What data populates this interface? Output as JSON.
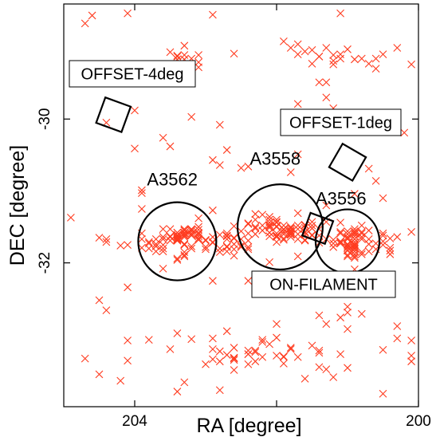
{
  "chart_data": {
    "type": "scatter",
    "title": "",
    "xlabel": "RA [degree]",
    "ylabel": "DEC [degree]",
    "xlim": [
      205.0,
      200.0
    ],
    "ylim": [
      -34.0,
      -28.4
    ],
    "x_reversed": true,
    "xticks": [
      204,
      202,
      200
    ],
    "xtick_labels": [
      "204",
      "",
      "200"
    ],
    "yticks": [
      -30,
      -32
    ],
    "ytick_labels": [
      "-30",
      "-32"
    ],
    "grid": false,
    "legend": "none",
    "marker": "x",
    "marker_color": "#ff3b1f",
    "frame_color": "#000000",
    "clusters": [
      {
        "name": "A3562",
        "ra": 203.4,
        "dec": -31.7,
        "radius": 0.55
      },
      {
        "name": "A3558",
        "ra": 201.95,
        "dec": -31.5,
        "radius": 0.6
      },
      {
        "name": "A3556",
        "ra": 201.0,
        "dec": -31.7,
        "radius": 0.45
      }
    ],
    "fields": [
      {
        "name": "OFFSET-4deg",
        "ra": 204.3,
        "dec": -29.94,
        "size": 0.38,
        "angle": 20
      },
      {
        "name": "OFFSET-1deg",
        "ra": 201.0,
        "dec": -30.6,
        "size": 0.38,
        "angle": 30
      },
      {
        "name": "ON-FILAMENT",
        "ra": 201.42,
        "dec": -31.52,
        "size": 0.34,
        "angle": 20
      }
    ],
    "points_x": [
      201.8,
      204.2,
      201.8,
      204.4,
      204.4,
      201.9,
      200.9,
      203.4,
      202.6,
      201.1,
      200.8,
      203.6,
      201.4,
      203.7,
      202.7,
      203.9,
      200.3,
      203.2,
      204.5,
      203.2,
      201.6,
      200.1,
      200.7,
      202.1,
      201.9,
      201.8,
      201.6,
      202.1,
      202.0,
      201.6,
      201.6,
      202.1,
      202.4,
      201.1,
      201.9,
      202.3,
      202.2,
      201.8,
      202.0,
      202.0,
      202.1,
      201.5,
      201.8,
      201.7,
      201.8,
      201.5,
      202.3,
      202.5,
      202.4,
      201.8,
      201.7,
      201.9,
      201.8,
      202.0,
      201.9,
      202.0,
      201.6,
      201.8,
      202.0,
      202.2,
      201.5,
      202.1,
      201.9,
      202.0,
      201.6,
      202.1,
      202.1,
      202.1,
      201.8,
      201.7,
      202.0,
      201.8,
      201.7,
      202.1,
      202.2,
      202.0,
      201.6,
      201.7,
      202.0,
      202.1,
      203.6,
      203.4,
      203.3,
      203.2,
      203.3,
      203.3,
      203.5,
      203.7,
      203.3,
      203.4,
      203.3,
      203.4,
      203.4,
      203.4,
      203.0,
      203.4,
      203.1,
      203.3,
      203.6,
      203.3,
      203.4,
      203.4,
      203.3,
      203.7,
      203.2,
      203.5,
      203.4,
      203.3,
      203.4,
      203.1,
      203.4,
      203.2,
      203.3,
      203.7,
      203.5,
      203.8,
      200.9,
      201.0,
      200.8,
      200.9,
      200.8,
      200.8,
      201.0,
      201.0,
      201.0,
      200.9,
      201.0,
      201.0,
      200.9,
      200.9,
      201.0,
      200.9,
      200.9,
      201.1,
      200.9,
      201.0,
      201.0,
      200.9,
      201.2,
      200.9,
      201.4,
      201.3,
      201.0,
      201.1,
      200.9,
      201.2,
      201.5,
      200.9,
      201.1,
      201.0,
      200.7,
      200.9,
      200.9,
      200.9,
      201.1,
      201.0,
      202.6,
      202.7,
      202.9,
      202.7,
      203.0,
      202.4,
      201.9,
      202.3,
      202.2,
      202.6,
      203.5,
      202.4,
      203.8,
      202.3,
      202.2,
      202.4,
      202.9,
      202.4,
      202.6,
      202.8,
      202.9,
      202.6,
      202.6,
      202.8,
      201.3,
      201.2,
      201.5,
      201.1,
      200.8,
      201.6,
      200.6,
      201.4,
      201.1,
      201.2,
      201.5,
      201.7,
      201.2,
      201.4,
      203.1,
      203.3,
      203.3,
      203.2,
      203.4,
      203.3,
      203.1,
      203.3,
      203.1,
      203.4,
      203.3,
      202.9,
      203.1,
      203.4,
      203.1,
      203.1,
      203.2,
      203.3,
      203.3,
      203.0,
      203.1,
      203.1,
      203.3,
      203.4,
      203.4,
      203.2,
      203.2,
      203.1,
      203.5,
      203.1,
      202.7,
      202.3,
      202.7,
      202.4,
      202.9,
      202.3,
      202.6,
      202.7,
      202.6,
      202.9,
      202.7,
      202.7,
      202.5,
      202.4,
      202.6,
      202.6,
      202.5,
      202.4,
      202.6,
      202.8,
      202.8,
      202.5,
      203.0,
      203.0,
      202.8,
      202.7,
      202.7,
      202.4,
      200.4,
      200.6,
      200.7,
      200.4,
      201.0,
      200.7,
      200.5,
      200.9,
      200.4,
      200.6,
      201.0,
      200.5,
      200.8,
      200.5,
      200.5,
      200.4,
      203.8,
      203.9,
      204.1,
      203.6,
      203.7,
      203.9,
      203.8,
      203.6,
      203.6,
      203.3,
      201.7,
      201.0,
      201.6,
      201.4,
      201.2,
      200.9,
      200.8,
      201.5,
      201.1,
      200.8,
      201.1,
      200.9,
      201.3,
      201.0,
      201.8,
      201.1,
      201.4,
      201.0,
      201.1,
      200.5,
      201.0,
      201.8,
      202.0,
      202.1,
      201.5,
      201.4,
      201.7,
      202.0,
      200.1,
      200.8,
      202.2,
      204.1,
      202.0,
      204.1,
      203.4,
      201.4,
      201.4,
      203.2,
      201.2,
      200.1,
      204.7,
      200.9,
      204.4,
      203.9,
      200.9,
      204.4,
      201.3,
      201.3,
      203.4,
      202.9,
      201.2,
      203.9,
      201.7,
      202.4,
      202.3,
      201.3,
      200.6,
      202.3,
      201.3,
      204.0,
      203.6,
      200.3,
      200.5,
      201.6,
      200.3,
      201.1,
      202.9,
      204.0,
      203.3,
      200.7,
      201.1,
      201.9,
      202.7,
      201.3,
      202.1,
      203.3,
      201.9,
      200.2,
      201.1,
      200.1,
      202.8,
      200.6,
      203.6,
      201.0,
      201.0,
      201.5,
      202.4,
      202.8,
      204.5,
      201.7,
      200.9,
      203.5,
      204.6,
      202.3,
      202.8,
      203.4,
      204.1,
      203.1,
      204.9,
      201.3,
      200.1,
      204.7,
      204.1,
      201.9,
      201.9,
      202.9,
      203.9,
      201.1,
      201.9,
      202.6,
      201.4,
      200.5,
      204.2,
      203.5,
      204.4,
      200.7,
      200.3,
      203.2,
      201.1,
      202.5,
      202.9,
      200.5,
      201.4,
      201.7,
      204.5,
      201.8,
      204.0,
      201.8
    ],
    "points_y": [
      -31.61,
      -31.76,
      -31.6,
      -31.71,
      -31.67,
      -31.68,
      -31.53,
      -31.58,
      -31.65,
      -31.57,
      -31.48,
      -31.53,
      -31.62,
      -31.67,
      -31.63,
      -31.59,
      -31.64,
      -31.53,
      -31.65,
      -31.59,
      -31.69,
      -31.57,
      -31.55,
      -31.63,
      -31.53,
      -31.57,
      -31.47,
      -31.49,
      -31.49,
      -31.68,
      -31.57,
      -31.47,
      -31.45,
      -31.71,
      -31.66,
      -31.4,
      -31.33,
      -31.55,
      -31.71,
      -31.5,
      -31.51,
      -31.43,
      -31.52,
      -31.31,
      -31.6,
      -31.52,
      -31.32,
      -31.56,
      -31.46,
      -31.52,
      -31.6,
      -31.54,
      -31.58,
      -31.59,
      -31.48,
      -31.63,
      -31.58,
      -31.5,
      -31.43,
      -31.48,
      -31.48,
      -31.58,
      -31.6,
      -31.4,
      -31.48,
      -31.4,
      -31.49,
      -31.36,
      -31.64,
      -31.67,
      -31.64,
      -31.55,
      -31.53,
      -31.58,
      -31.55,
      -31.62,
      -31.51,
      -31.48,
      -31.44,
      -31.44,
      -31.67,
      -31.94,
      -31.91,
      -31.61,
      -31.74,
      -31.64,
      -31.64,
      -31.74,
      -31.55,
      -31.66,
      -31.75,
      -31.69,
      -31.62,
      -31.69,
      -31.81,
      -31.58,
      -31.58,
      -31.74,
      -31.84,
      -31.62,
      -31.68,
      -31.69,
      -31.61,
      -31.77,
      -31.77,
      -31.69,
      -31.66,
      -31.89,
      -31.96,
      -31.6,
      -31.61,
      -31.8,
      -31.74,
      -31.84,
      -31.53,
      -31.73,
      -31.78,
      -31.66,
      -31.57,
      -31.76,
      -31.67,
      -31.88,
      -31.82,
      -31.79,
      -31.89,
      -31.74,
      -31.91,
      -31.74,
      -31.71,
      -31.74,
      -31.79,
      -31.67,
      -31.63,
      -31.73,
      -31.91,
      -31.6,
      -31.74,
      -31.6,
      -31.78,
      -31.76,
      -31.72,
      -31.67,
      -31.56,
      -31.73,
      -31.81,
      -31.73,
      -31.61,
      -31.8,
      -31.7,
      -31.67,
      -31.67,
      -31.88,
      -31.93,
      -31.84,
      -31.71,
      -31.77,
      -33.33,
      -33.28,
      -33.05,
      -32.95,
      -33.41,
      -33.27,
      -33.31,
      -33.24,
      -33.31,
      -33.32,
      -33.2,
      -33.22,
      -33.07,
      -33.37,
      -33.1,
      -33.27,
      -33.2,
      -33.41,
      -33.18,
      -33.37,
      -33.34,
      -33.49,
      -33.35,
      -33.23,
      -29.01,
      -29.19,
      -29.23,
      -29.16,
      -29.16,
      -29.06,
      -29.16,
      -29.13,
      -29.1,
      -29.24,
      -29.04,
      -29.1,
      -29.11,
      -29.13,
      -29.28,
      -29.26,
      -29.35,
      -29.16,
      -29.12,
      -29.17,
      -29.21,
      -29.11,
      -29.11,
      -29.13,
      -31.53,
      -31.64,
      -31.66,
      -31.67,
      -31.54,
      -31.68,
      -31.54,
      -31.55,
      -31.58,
      -31.68,
      -31.63,
      -31.68,
      -31.59,
      -31.64,
      -31.64,
      -31.62,
      -31.56,
      -31.6,
      -31.63,
      -31.5,
      -31.77,
      -31.52,
      -31.62,
      -31.59,
      -31.72,
      -31.6,
      -31.49,
      -31.63,
      -31.81,
      -31.71,
      -31.84,
      -31.67,
      -31.78,
      -31.69,
      -31.66,
      -31.9,
      -31.67,
      -31.81,
      -31.74,
      -31.8,
      -31.85,
      -31.76,
      -31.69,
      -31.78,
      -31.61,
      -31.59,
      -31.78,
      -31.78,
      -31.79,
      -31.81,
      -31.74,
      -31.88,
      -31.75,
      -31.84,
      -31.7,
      -31.67,
      -31.66,
      -31.73,
      -31.64,
      -31.75,
      -31.85,
      -31.62,
      -31.59,
      -31.83,
      -31.71,
      -31.79,
      -31.75,
      -31.75,
      -31.77,
      -31.67,
      -31.8,
      -31.8,
      -31.64,
      -31.85,
      -31.91,
      -31.83,
      -31.61,
      -31.53,
      -31.68,
      -31.56,
      -31.59,
      -31.62,
      -31.59,
      -31.64,
      -31.44,
      -31.58,
      -31.2,
      -32.92,
      -33.2,
      -32.76,
      -33.25,
      -32.61,
      -33.27,
      -33.21,
      -32.69,
      -33.18,
      -32.85,
      -33.13,
      -33.15,
      -32.73,
      -33.31,
      -33.04,
      -33.08,
      -32.71,
      -33.07,
      -33.08,
      -33.29,
      -33.36,
      -32.98,
      -33.22,
      -33.45,
      -33.06,
      -33.59,
      -33.37,
      -33.33,
      -29.17,
      -32.66,
      -31.25,
      -31.04,
      -30.05,
      -29.49,
      -33.48,
      -33.79,
      -28.55,
      -29.85,
      -30.99,
      -30.49,
      -30.66,
      -31.5,
      -31.43,
      -29.3,
      -32.22,
      -30.01,
      -29.49,
      -30.26,
      -33.05,
      -29.1,
      -33.61,
      -29.01,
      -30.11,
      -32.25,
      -30.41,
      -33.66,
      -30.69,
      -32.23,
      -33.3,
      -30.43,
      -32.85,
      -31.99,
      -28.98,
      -31.57,
      -30.19,
      -29.98,
      -33.29,
      -33.77,
      -30.86,
      -32.08,
      -33.46,
      -29.03,
      -31.52,
      -32.25,
      -30.64,
      -32.52,
      -28.96,
      -32.09,
      -30.38,
      -28.56,
      -33.22,
      -30.08,
      -29.17,
      -32.34,
      -31.38,
      -31.37,
      -29.7,
      -29.24,
      -28.67,
      -28.53,
      -31.57,
      -28.92,
      -30.57,
      -31.03,
      -32.42,
      -33.4,
      -29.09,
      -30.17,
      -33.82,
      -33.64,
      -29.07,
      -29.49,
      -29.23,
      -32.88,
      -29.97,
      -28.53,
      -30.68,
      -31.27,
      -31.1,
      -29.49,
      -29.79,
      -33.55,
      -30.74,
      -29.88,
      -29.01,
      -33.42,
      -30.51,
      -32.47,
      -32.24,
      -33.56,
      -33.6,
      -33.67,
      -33.33,
      -30.72,
      -32.01,
      -28.68,
      -31.57,
      -31.77,
      -32.97,
      -33.08,
      -30.56,
      -29.13,
      -30.32,
      -30.92,
      -32.4,
      -30.92,
      -32.93,
      -32.72,
      -31.25,
      -29.41,
      -31.98,
      -29.35,
      -30.91,
      -32.31,
      -33.03,
      -32.84,
      -32.08,
      -28.66,
      -33.5,
      -30.46,
      -29.52,
      -28.53,
      -30.99,
      -30.49,
      -32.01,
      -28.76,
      -32.62,
      -31.28,
      -30.09,
      -32.09,
      -30.98,
      -29.85,
      -29.96,
      -31.21,
      -29.76,
      -30.08,
      -31.23,
      -30.64,
      -30.66,
      -31.0,
      -33.74,
      -29.24,
      -33.28,
      -32.91,
      -29.02,
      -32.85,
      -30.75,
      -31.78,
      -33.65,
      -28.95,
      -33.4,
      -33.43,
      -31.21,
      -33.92,
      -29.99
    ]
  }
}
